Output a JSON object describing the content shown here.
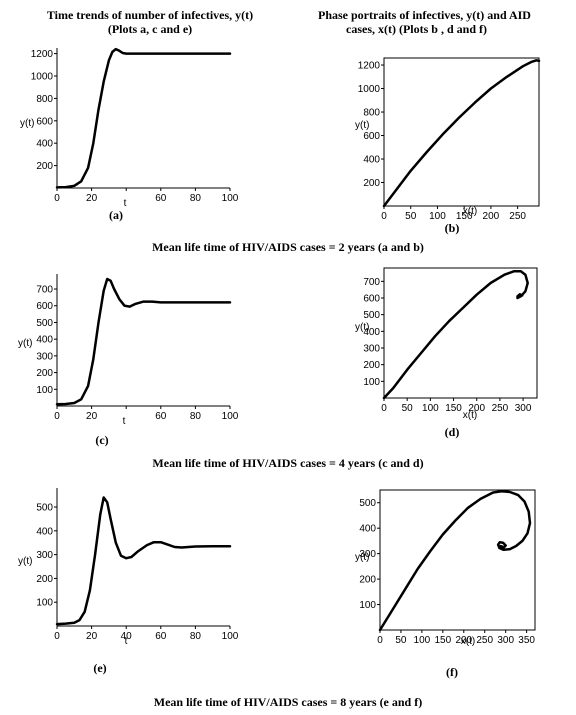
{
  "headers": {
    "left_line1": "Time trends of number of infectives, y(t)",
    "left_line2": "(Plots a, c and e)",
    "right_line1": "Phase portraits of infectives, y(t) and AID",
    "right_line2": "cases, x(t)  (Plots b , d and f)"
  },
  "captions": {
    "row1": "Mean life time of HIV/AIDS cases = 2 years (a and b)",
    "row2": "Mean life time of HIV/AIDS cases = 4 years  (c and d)",
    "row3": "Mean life time of HIV/AIDS cases = 8 years (e and f)"
  },
  "chart_data": [
    {
      "id": "a",
      "sublabel": "(a)",
      "type": "line",
      "xlabel": "t",
      "ylabel": "y(t)",
      "xlim": [
        0,
        100
      ],
      "ylim": [
        0,
        1250
      ],
      "xticks": [
        0,
        20,
        40,
        60,
        80,
        100
      ],
      "xticklabels": [
        "0",
        "20",
        "",
        "60",
        "80",
        "100"
      ],
      "yticks": [
        200,
        400,
        600,
        800,
        1000,
        1200
      ],
      "series": [
        {
          "x": [
            0,
            5,
            10,
            14,
            18,
            21,
            24,
            27,
            30,
            32,
            34,
            36,
            38,
            40,
            45,
            50,
            60,
            70,
            80,
            90,
            100
          ],
          "y": [
            5,
            8,
            20,
            60,
            180,
            400,
            700,
            950,
            1140,
            1215,
            1240,
            1225,
            1205,
            1200,
            1200,
            1200,
            1200,
            1200,
            1200,
            1200,
            1200
          ]
        }
      ]
    },
    {
      "id": "b",
      "sublabel": "(b)",
      "type": "line",
      "xlabel": "x(t)",
      "ylabel": "y(t)",
      "xlim": [
        0,
        290
      ],
      "ylim": [
        0,
        1260
      ],
      "xticks": [
        0,
        50,
        100,
        150,
        200,
        250
      ],
      "xticklabels": [
        "0",
        "50",
        "100",
        "150",
        "200",
        "250"
      ],
      "yticks": [
        200,
        400,
        600,
        800,
        1000,
        1200
      ],
      "series": [
        {
          "x": [
            0,
            20,
            50,
            80,
            110,
            140,
            170,
            200,
            230,
            260,
            275,
            285,
            290
          ],
          "y": [
            0,
            120,
            300,
            460,
            610,
            750,
            880,
            1000,
            1100,
            1190,
            1225,
            1240,
            1235
          ]
        }
      ]
    },
    {
      "id": "c",
      "sublabel": "(c)",
      "type": "line",
      "xlabel": "t",
      "ylabel": "y(t)",
      "xlim": [
        0,
        100
      ],
      "ylim": [
        0,
        790
      ],
      "xticks": [
        0,
        20,
        40,
        60,
        80,
        100
      ],
      "xticklabels": [
        "0",
        "20",
        "",
        "60",
        "80",
        "100"
      ],
      "yticks": [
        100,
        200,
        300,
        400,
        500,
        600,
        700
      ],
      "series": [
        {
          "x": [
            0,
            5,
            10,
            14,
            18,
            21,
            24,
            27,
            29,
            31,
            33,
            36,
            39,
            42,
            45,
            50,
            55,
            60,
            70,
            80,
            90,
            100
          ],
          "y": [
            10,
            12,
            18,
            40,
            120,
            280,
            500,
            690,
            760,
            750,
            700,
            640,
            600,
            595,
            610,
            625,
            625,
            620,
            620,
            620,
            620,
            620
          ]
        }
      ]
    },
    {
      "id": "d",
      "sublabel": "(d)",
      "type": "line",
      "xlabel": "x(t)",
      "ylabel": "y(t)",
      "xlim": [
        0,
        330
      ],
      "ylim": [
        0,
        780
      ],
      "xticks": [
        0,
        50,
        100,
        150,
        200,
        250,
        300
      ],
      "xticklabels": [
        "0",
        "50",
        "100",
        "150",
        "200",
        "250",
        "300"
      ],
      "yticks": [
        100,
        200,
        300,
        400,
        500,
        600,
        700
      ],
      "series": [
        {
          "x": [
            0,
            20,
            50,
            80,
            110,
            140,
            170,
            200,
            230,
            260,
            280,
            295,
            305,
            310,
            305,
            295,
            288,
            288,
            293,
            298
          ],
          "y": [
            0,
            60,
            170,
            270,
            370,
            460,
            540,
            620,
            690,
            740,
            760,
            760,
            740,
            690,
            640,
            610,
            600,
            610,
            622,
            615
          ]
        }
      ]
    },
    {
      "id": "e",
      "sublabel": "(e)",
      "type": "line",
      "xlabel": "t",
      "ylabel": "y(t)",
      "xlim": [
        0,
        100
      ],
      "ylim": [
        0,
        580
      ],
      "xticks": [
        0,
        20,
        40,
        60,
        80,
        100
      ],
      "xticklabels": [
        "0",
        "20",
        "40",
        "60",
        "80",
        "100"
      ],
      "yticks": [
        100,
        200,
        300,
        400,
        500
      ],
      "series": [
        {
          "x": [
            0,
            5,
            10,
            13,
            16,
            19,
            22,
            25,
            27,
            29,
            31,
            34,
            37,
            40,
            43,
            47,
            52,
            56,
            60,
            64,
            68,
            72,
            76,
            80,
            90,
            100
          ],
          "y": [
            8,
            10,
            14,
            25,
            60,
            150,
            300,
            470,
            540,
            520,
            450,
            350,
            295,
            285,
            290,
            315,
            340,
            352,
            352,
            342,
            332,
            330,
            332,
            334,
            335,
            335
          ]
        }
      ]
    },
    {
      "id": "f",
      "sublabel": "(f)",
      "type": "line",
      "xlabel": "x(t)",
      "ylabel": "y(t)",
      "xlim": [
        0,
        370
      ],
      "ylim": [
        0,
        550
      ],
      "xticks": [
        0,
        50,
        100,
        150,
        200,
        250,
        300,
        350
      ],
      "xticklabels": [
        "0",
        "50",
        "100",
        "150",
        "200",
        "250",
        "300",
        "350"
      ],
      "yticks": [
        100,
        200,
        300,
        400,
        500
      ],
      "series": [
        {
          "x": [
            0,
            30,
            60,
            90,
            120,
            150,
            180,
            210,
            240,
            270,
            290,
            310,
            330,
            345,
            355,
            358,
            352,
            340,
            325,
            310,
            295,
            285,
            282,
            286,
            294,
            300,
            296,
            288
          ],
          "y": [
            0,
            80,
            160,
            240,
            310,
            375,
            430,
            480,
            515,
            540,
            545,
            542,
            530,
            505,
            465,
            420,
            380,
            350,
            330,
            318,
            315,
            322,
            335,
            345,
            342,
            332,
            325,
            330
          ]
        }
      ]
    }
  ]
}
